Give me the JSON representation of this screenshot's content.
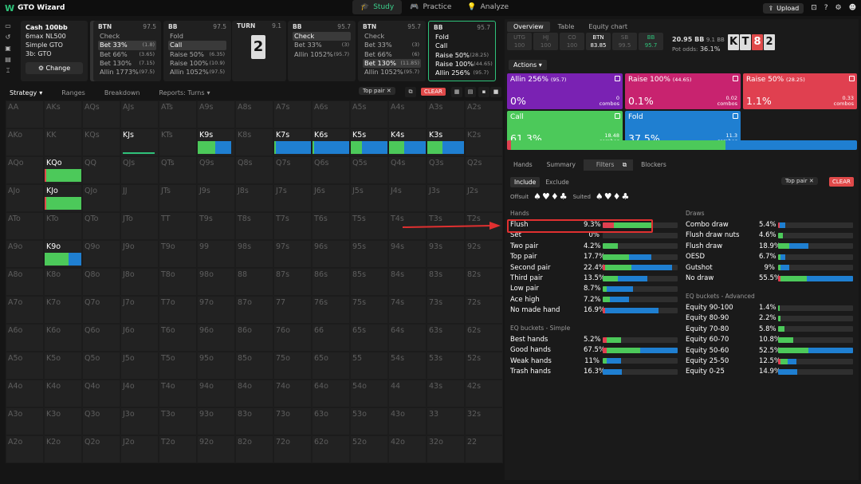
{
  "app": {
    "title": "GTO Wizard",
    "logo": "W"
  },
  "nav": {
    "study": "Study",
    "practice": "Practice",
    "analyze": "Analyze",
    "upload": "Upload"
  },
  "game": {
    "line1": "Cash 100bb",
    "line2": "6max NL500",
    "line3": "Simple GTO",
    "line4": "3b: GTO",
    "change": "Change"
  },
  "cards": [
    {
      "pos": "BTN",
      "stack": "97.5",
      "rows": [
        [
          "Check",
          ""
        ],
        [
          "Bet 33%",
          "(1.8)"
        ],
        [
          "Bet 66%",
          "(3.65)"
        ],
        [
          "Bet 130%",
          "(7.15)"
        ],
        [
          "Allin 1773%",
          "(97.5)"
        ]
      ],
      "sel": 1
    },
    {
      "pos": "BB",
      "stack": "97.5",
      "rows": [
        [
          "Fold",
          ""
        ],
        [
          "Call",
          ""
        ],
        [
          "Raise 50%",
          "(6.35)"
        ],
        [
          "Raise 100%",
          "(10.9)"
        ],
        [
          "Allin 1052%",
          "(97.5)"
        ]
      ],
      "sel": 1
    },
    {
      "pos": "BB",
      "stack": "95.7",
      "rows": [
        [
          "Check",
          ""
        ],
        [
          "Bet 33%",
          "(3)"
        ],
        [
          "Allin 1052%",
          "(95.7)"
        ]
      ],
      "sel": 0
    },
    {
      "pos": "BTN",
      "stack": "95.7",
      "rows": [
        [
          "Check",
          ""
        ],
        [
          "Bet 33%",
          "(3)"
        ],
        [
          "Bet 66%",
          "(6)"
        ],
        [
          "Bet 130%",
          "(11.85)"
        ],
        [
          "Allin 1052%",
          "(95.7)"
        ]
      ],
      "sel": 3
    },
    {
      "pos": "BB",
      "stack": "95.7",
      "rows": [
        [
          "Fold",
          ""
        ],
        [
          "Call",
          ""
        ],
        [
          "Raise 50%",
          "(28.25)"
        ],
        [
          "Raise 100%",
          "(44.65)"
        ],
        [
          "Allin 256%",
          "(95.7)"
        ]
      ],
      "sel": -1
    }
  ],
  "turn": {
    "label": "TURN",
    "pot": "9.1",
    "card": "2"
  },
  "subtabs": {
    "strategy": "Strategy",
    "ranges": "Ranges",
    "breakdown": "Breakdown",
    "reports": "Reports: Turns"
  },
  "filter": {
    "chip": "Top pair",
    "clear": "CLEAR"
  },
  "ranks": [
    "A",
    "K",
    "Q",
    "J",
    "T",
    "9",
    "8",
    "7",
    "6",
    "5",
    "4",
    "3",
    "2"
  ],
  "live_hands": {
    "AKs": null,
    "AJs": null,
    "KJs": {
      "underline": true
    },
    "K9s": {
      "segs": [
        [
          "#4cc95a",
          0.45
        ],
        [
          "#1f7fd1",
          0.42
        ]
      ]
    },
    "K7s": {
      "segs": [
        [
          "#4cc95a",
          0.05
        ],
        [
          "#1f7fd1",
          0.95
        ]
      ]
    },
    "K6s": {
      "segs": [
        [
          "#4cc95a",
          0.05
        ],
        [
          "#1f7fd1",
          0.95
        ]
      ]
    },
    "K5s": {
      "segs": [
        [
          "#4cc95a",
          0.3
        ],
        [
          "#1f7fd1",
          0.7
        ]
      ]
    },
    "K4s": {
      "segs": [
        [
          "#4cc95a",
          0.4
        ],
        [
          "#1f7fd1",
          0.6
        ]
      ]
    },
    "K3s": {
      "segs": [
        [
          "#4cc95a",
          0.4
        ],
        [
          "#1f7fd1",
          0.6
        ]
      ]
    },
    "KQo": {
      "segs": [
        [
          "#e04a4a",
          0.05
        ],
        [
          "#4cc95a",
          0.95
        ]
      ]
    },
    "KJo": {
      "segs": [
        [
          "#e04a4a",
          0.05
        ],
        [
          "#4cc95a",
          0.95
        ]
      ]
    },
    "K9o": {
      "segs": [
        [
          "#4cc95a",
          0.62
        ],
        [
          "#1f7fd1",
          0.38
        ]
      ]
    }
  },
  "right": {
    "tabs": [
      "Overview",
      "Table",
      "Equity chart"
    ],
    "positions": [
      [
        "UTG",
        "100"
      ],
      [
        "HJ",
        "100"
      ],
      [
        "CO",
        "100"
      ],
      [
        "BTN",
        "83.85"
      ],
      [
        "SB",
        "99.5"
      ],
      [
        "BB",
        "95.7"
      ]
    ],
    "pot": "20.95 BB",
    "pot2": "9.1 BB",
    "potodds_label": "Pot odds:",
    "potodds": "36.1%",
    "board": [
      "K",
      "T",
      "8",
      "2"
    ],
    "actions_btn": "Actions",
    "strategies": [
      {
        "name": "Allin 256%",
        "sub": "(95.7)",
        "pct": "0%",
        "combos": "0",
        "color": "#7a22b3"
      },
      {
        "name": "Raise 100%",
        "sub": "(44.65)",
        "pct": "0.1%",
        "combos": "0.02",
        "color": "#c8236f"
      },
      {
        "name": "Raise 50%",
        "sub": "(28.25)",
        "pct": "1.1%",
        "combos": "0.33",
        "color": "#e04050"
      },
      {
        "name": "Call",
        "sub": "",
        "pct": "61.3%",
        "combos": "18.48",
        "color": "#4cc95a"
      },
      {
        "name": "Fold",
        "sub": "",
        "pct": "37.5%",
        "combos": "11.3",
        "color": "#1f7fd1"
      }
    ],
    "combos_label": "combos",
    "freq": [
      [
        "#e04050",
        0.012
      ],
      [
        "#4cc95a",
        0.613
      ],
      [
        "#1f7fd1",
        0.375
      ]
    ],
    "subtabs": [
      "Hands",
      "Summary",
      "Filters",
      "Blockers"
    ],
    "include": "Include",
    "exclude": "Exclude",
    "offsuit": "Offsuit",
    "suited": "Suited",
    "hands_title": "Hands",
    "draws_title": "Draws",
    "eq_simple_title": "EQ buckets - Simple",
    "eq_adv_title": "EQ buckets - Advanced",
    "hands": [
      [
        "Flush",
        "9.3%",
        [
          [
            "#e04050",
            0.15
          ],
          [
            "#4cc95a",
            0.5
          ],
          [
            "#1f7fd1",
            0
          ]
        ]
      ],
      [
        "Set",
        "0%",
        []
      ],
      [
        "Two pair",
        "4.2%",
        [
          [
            "#4cc95a",
            0.2
          ]
        ]
      ],
      [
        "Top pair",
        "17.7%",
        [
          [
            "#4cc95a",
            0.35
          ],
          [
            "#1f7fd1",
            0.3
          ]
        ]
      ],
      [
        "Second pair",
        "22.4%",
        [
          [
            "#e04050",
            0.03
          ],
          [
            "#4cc95a",
            0.35
          ],
          [
            "#1f7fd1",
            0.55
          ]
        ]
      ],
      [
        "Third pair",
        "13.5%",
        [
          [
            "#4cc95a",
            0.2
          ],
          [
            "#1f7fd1",
            0.4
          ]
        ]
      ],
      [
        "Low pair",
        "8.7%",
        [
          [
            "#4cc95a",
            0.05
          ],
          [
            "#1f7fd1",
            0.35
          ]
        ]
      ],
      [
        "Ace high",
        "7.2%",
        [
          [
            "#4cc95a",
            0.1
          ],
          [
            "#1f7fd1",
            0.25
          ]
        ]
      ],
      [
        "No made hand",
        "16.9%",
        [
          [
            "#e04050",
            0.03
          ],
          [
            "#1f7fd1",
            0.72
          ]
        ]
      ]
    ],
    "eqs": [
      [
        "Best hands",
        "5.2%",
        [
          [
            "#e04050",
            0.05
          ],
          [
            "#4cc95a",
            0.2
          ]
        ]
      ],
      [
        "Good hands",
        "67.5%",
        [
          [
            "#e04050",
            0.05
          ],
          [
            "#4cc95a",
            0.45
          ],
          [
            "#1f7fd1",
            0.5
          ]
        ]
      ],
      [
        "Weak hands",
        "11%",
        [
          [
            "#4cc95a",
            0.05
          ],
          [
            "#1f7fd1",
            0.2
          ]
        ]
      ],
      [
        "Trash hands",
        "16.3%",
        [
          [
            "#1f7fd1",
            0.25
          ]
        ]
      ]
    ],
    "draws": [
      [
        "Combo draw",
        "5.4%",
        [
          [
            "#e04050",
            0.02
          ],
          [
            "#1f7fd1",
            0.08
          ]
        ]
      ],
      [
        "Flush draw nuts",
        "4.6%",
        [
          [
            "#4cc95a",
            0.06
          ]
        ]
      ],
      [
        "Flush draw",
        "18.9%",
        [
          [
            "#4cc95a",
            0.15
          ],
          [
            "#1f7fd1",
            0.25
          ]
        ]
      ],
      [
        "OESD",
        "6.7%",
        [
          [
            "#4cc95a",
            0.03
          ],
          [
            "#1f7fd1",
            0.07
          ]
        ]
      ],
      [
        "Gutshot",
        "9%",
        [
          [
            "#4cc95a",
            0.03
          ],
          [
            "#1f7fd1",
            0.12
          ]
        ]
      ],
      [
        "No draw",
        "55.5%",
        [
          [
            "#e04050",
            0.03
          ],
          [
            "#4cc95a",
            0.35
          ],
          [
            "#1f7fd1",
            0.62
          ]
        ]
      ]
    ],
    "eqa": [
      [
        "Equity 90-100",
        "1.4%",
        [
          [
            "#4cc95a",
            0.02
          ]
        ]
      ],
      [
        "Equity 80-90",
        "2.2%",
        [
          [
            "#4cc95a",
            0.03
          ]
        ]
      ],
      [
        "Equity 70-80",
        "5.8%",
        [
          [
            "#4cc95a",
            0.08
          ]
        ]
      ],
      [
        "Equity 60-70",
        "10.8%",
        [
          [
            "#4cc95a",
            0.2
          ]
        ]
      ],
      [
        "Equity 50-60",
        "52.5%",
        [
          [
            "#4cc95a",
            0.4
          ],
          [
            "#1f7fd1",
            0.6
          ]
        ]
      ],
      [
        "Equity 25-50",
        "12.5%",
        [
          [
            "#e04050",
            0.03
          ],
          [
            "#4cc95a",
            0.1
          ],
          [
            "#1f7fd1",
            0.12
          ]
        ]
      ],
      [
        "Equity 0-25",
        "14.9%",
        [
          [
            "#1f7fd1",
            0.25
          ]
        ]
      ]
    ]
  }
}
